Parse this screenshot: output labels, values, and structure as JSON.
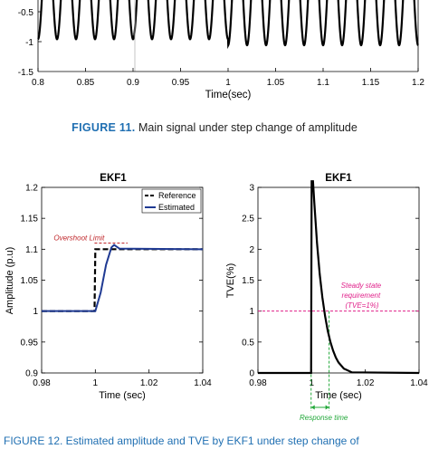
{
  "figure11": {
    "label": "FIGURE 11.",
    "caption": "Main signal under step change of amplitude",
    "chart_data": {
      "type": "line",
      "xlabel": "Time(sec)",
      "xlim": [
        0.8,
        1.2
      ],
      "xticks": [
        "0.8",
        "0.85",
        "0.9",
        "0.95",
        "1",
        "1.05",
        "1.1",
        "1.15",
        "1.2"
      ],
      "yticks": [
        "-0.5",
        "-1",
        "-1.5"
      ],
      "ylim_visible": [
        -1.5,
        -0.35
      ],
      "series": [
        {
          "frequency_hz": 50,
          "trough_before_step": -0.96,
          "trough_after_step": -1.06,
          "step_time": 1.0
        }
      ],
      "vertical_marker_x": 0.9,
      "grid": false
    }
  },
  "figure12_panels": [
    {
      "title": "EKF1",
      "chart_data": {
        "type": "line",
        "xlabel": "Time (sec)",
        "ylabel": "Amplitude (p.u)",
        "xlim": [
          0.98,
          1.04
        ],
        "ylim": [
          0.9,
          1.2
        ],
        "xticks": [
          "0.98",
          "1",
          "1.02",
          "1.04"
        ],
        "yticks": [
          "0.9",
          "0.95",
          "1",
          "1.05",
          "1.1",
          "1.15",
          "1.2"
        ],
        "legend_position": "top-right",
        "series": [
          {
            "name": "Reference",
            "style": "dashed",
            "color": "#000000",
            "x": [
              0.98,
              0.9997,
              1.0,
              1.04
            ],
            "y": [
              1.0,
              1.0,
              1.1,
              1.1
            ]
          },
          {
            "name": "Estimated",
            "style": "solid",
            "color": "#1f3a93",
            "x": [
              0.98,
              1.0,
              1.002,
              1.004,
              1.006,
              1.007,
              1.009,
              1.04
            ],
            "y": [
              1.0,
              1.0,
              1.03,
              1.075,
              1.103,
              1.107,
              1.101,
              1.1
            ]
          }
        ],
        "annotations": [
          {
            "text": "Overshoot Limit",
            "color": "#c0282c",
            "y": 1.11
          }
        ]
      }
    },
    {
      "title": "EKF1",
      "chart_data": {
        "type": "line",
        "xlabel": "Time (sec)",
        "ylabel": "TVE(%)",
        "xlim": [
          0.98,
          1.04
        ],
        "ylim": [
          0,
          3
        ],
        "xticks": [
          "0.98",
          "1",
          "1.02",
          "1.04"
        ],
        "yticks": [
          "0",
          "0.5",
          "1",
          "1.5",
          "2",
          "2.5",
          "3"
        ],
        "series": [
          {
            "color": "#000000",
            "x": [
              0.98,
              0.9998,
              1.0,
              1.0005,
              1.001,
              1.002,
              1.003,
              1.004,
              1.005,
              1.006,
              1.007,
              1.008,
              1.009,
              1.01,
              1.012,
              1.015,
              1.04
            ],
            "y": [
              0,
              0,
              3.2,
              3.2,
              2.75,
              2.1,
              1.6,
              1.22,
              0.92,
              0.68,
              0.5,
              0.36,
              0.25,
              0.17,
              0.07,
              0.01,
              0
            ]
          }
        ],
        "annotations": [
          {
            "text": "Steady state requirement (TVE=1%)",
            "color": "#e0208a",
            "y": 1.0
          },
          {
            "text": "Response time",
            "color": "#22a83a",
            "x_from": 0.9998,
            "x_to": 1.0065
          }
        ]
      }
    }
  ],
  "figure12_caption": "FIGURE 12. Estimated amplitude and TVE by EKF1 under step change of"
}
